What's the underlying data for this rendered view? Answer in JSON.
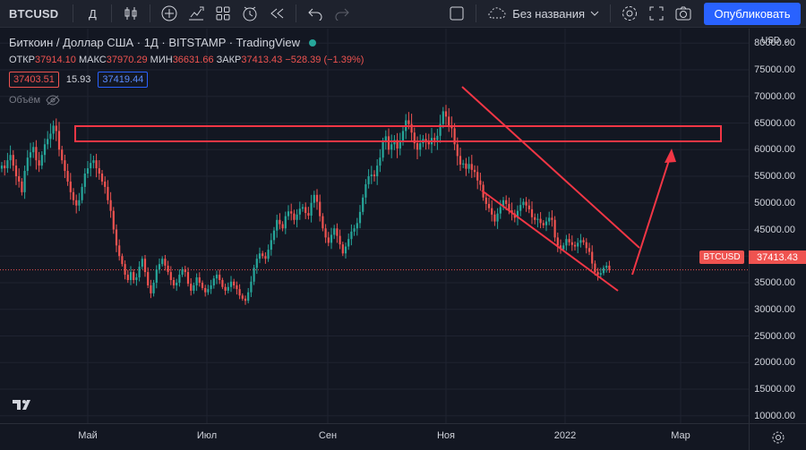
{
  "toolbar": {
    "symbol": "BTCUSD",
    "interval": "Д",
    "layout_name": "Без названия",
    "publish_label": "Опубликовать"
  },
  "legend": {
    "title": "Биткоин / Доллар США · 1Д · BITSTAMP · TradingView",
    "open_label": "ОТКР",
    "open_value": "37914.10",
    "high_label": "МАКС",
    "high_value": "37970.29",
    "low_label": "МИН",
    "low_value": "36631.66",
    "close_label": "ЗАКР",
    "close_value": "37413.43",
    "change_value": "−528.39 (−1.39%)",
    "bid": "37403.51",
    "spread": "15.93",
    "ask": "37419.44",
    "volume_label": "Объём"
  },
  "price_axis": {
    "currency": "USD",
    "labels": [
      "80000.00",
      "75000.00",
      "70000.00",
      "65000.00",
      "60000.00",
      "55000.00",
      "50000.00",
      "45000.00",
      "40000.00",
      "35000.00",
      "30000.00",
      "25000.00",
      "20000.00",
      "15000.00",
      "10000.00"
    ],
    "current_symbol": "BTCUSD",
    "current_price": "37413.43"
  },
  "time_axis": {
    "labels": [
      "Май",
      "Июл",
      "Сен",
      "Ноя",
      "2022",
      "Мар"
    ]
  },
  "colors": {
    "background": "#131722",
    "up": "#26a69a",
    "down": "#ef5350",
    "drawing": "#f23645",
    "accent": "#2962ff"
  },
  "chart_data": {
    "type": "candlestick",
    "ylim": [
      5000,
      82000
    ],
    "current_price": 37413.43,
    "close_series": [
      57000,
      56500,
      58000,
      59000,
      57000,
      55000,
      54000,
      52000,
      56000,
      58500,
      59500,
      60500,
      58000,
      57000,
      59000,
      61000,
      62000,
      63000,
      64500,
      63500,
      60000,
      58000,
      56000,
      54000,
      52000,
      50500,
      49500,
      50500,
      53000,
      55500,
      56500,
      57500,
      58000,
      56500,
      55500,
      54000,
      53000,
      50500,
      48500,
      45000,
      42000,
      40000,
      38500,
      36500,
      35500,
      37000,
      35500,
      36000,
      38000,
      39500,
      37000,
      34500,
      33000,
      35000,
      37500,
      38500,
      39500,
      38200,
      37000,
      35500,
      34500,
      35000,
      36500,
      37500,
      37000,
      34800,
      33500,
      34500,
      36000,
      35000,
      34000,
      33200,
      33800,
      34500,
      35800,
      36500,
      35500,
      34200,
      33500,
      34200,
      35200,
      34500,
      33800,
      32600,
      32000,
      31600,
      33200,
      35200,
      37800,
      39500,
      40500,
      40000,
      39500,
      41200,
      43000,
      44800,
      46800,
      46000,
      45200,
      47500,
      48400,
      48000,
      46800,
      47800,
      48900,
      49200,
      48100,
      47600,
      50000,
      51500,
      50200,
      47500,
      45200,
      43500,
      42500,
      44000,
      45200,
      43800,
      42200,
      40500,
      41800,
      43200,
      44600,
      45200,
      46200,
      48300,
      51000,
      53500,
      55000,
      55300,
      55000,
      57000,
      58500,
      61500,
      62500,
      60000,
      61000,
      61800,
      60200,
      61500,
      63500,
      65500,
      64800,
      63200,
      61200,
      60000,
      61200,
      62000,
      61500,
      61000,
      62200,
      61800,
      62600,
      64800,
      67200,
      66200,
      64300,
      64000,
      61000,
      58800,
      57200,
      57400,
      56400,
      57300,
      56200,
      55800,
      54200,
      53400,
      51000,
      49800,
      49000,
      47800,
      46500,
      48000,
      49200,
      50500,
      49800,
      48600,
      48000,
      47200,
      48500,
      49600,
      50200,
      49500,
      48800,
      47300,
      46800,
      47000,
      46200,
      45800,
      46500,
      47200,
      46800,
      43500,
      42000,
      41300,
      42000,
      43200,
      42600,
      42100,
      41800,
      42500,
      43000,
      42600,
      41500,
      40800,
      38600,
      37000,
      36500,
      36800,
      37800,
      38200,
      37413
    ]
  }
}
